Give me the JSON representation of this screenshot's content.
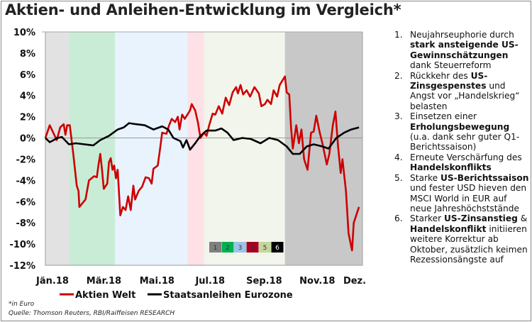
{
  "title": "Aktien- und Anleihen-Entwicklung im Vergleich*",
  "footnote": "*in Euro",
  "source": "Quelle: Thomson Reuters, RBI/Raiffeisen RESEARCH",
  "notes": [
    {
      "n": "1.",
      "parts": [
        {
          "t": "Neujahrseuphorie durch ",
          "b": false
        },
        {
          "t": "stark ansteigende US-Gewinnschätzungen",
          "b": true
        },
        {
          "t": " dank Steuerreform",
          "b": false
        }
      ]
    },
    {
      "n": "2.",
      "parts": [
        {
          "t": "Rückkehr des ",
          "b": false
        },
        {
          "t": "US-Zinsgespenstes",
          "b": true
        },
        {
          "t": " und Angst vor „Handelskrieg“ belasten",
          "b": false
        }
      ]
    },
    {
      "n": "3.",
      "parts": [
        {
          "t": "Einsetzen einer ",
          "b": false
        },
        {
          "t": "Erholungsbewegung",
          "b": true
        },
        {
          "t": " (u.a. dank sehr guter Q1-Berichtssaison)",
          "b": false
        }
      ]
    },
    {
      "n": "4.",
      "parts": [
        {
          "t": "Erneute Verschärfung des ",
          "b": false
        },
        {
          "t": "Handelskonflikts",
          "b": true
        }
      ]
    },
    {
      "n": "5.",
      "parts": [
        {
          "t": "Starke ",
          "b": false
        },
        {
          "t": "US-Berichtssaison",
          "b": true
        },
        {
          "t": " und fester USD hieven den MSCI World in EUR auf neue Jahreshöchststände",
          "b": false
        }
      ]
    },
    {
      "n": "6.",
      "parts": [
        {
          "t": "Starker ",
          "b": false
        },
        {
          "t": "US-Zinsanstieg",
          "b": true
        },
        {
          "t": " & ",
          "b": false
        },
        {
          "t": "Handelskonflikt",
          "b": true
        },
        {
          "t": " initiieren weitere Korrektur ab Oktober, zusätzlich keimen Rezessionsängste auf",
          "b": false
        }
      ]
    }
  ],
  "chart_data": {
    "type": "line",
    "title": "Aktien- und Anleihen-Entwicklung im Vergleich*",
    "ylim": [
      -12,
      10
    ],
    "yticks": [
      "10%",
      "8%",
      "6%",
      "4%",
      "2%",
      "0%",
      "-2%",
      "-4%",
      "-6%",
      "-8%",
      "-10%",
      "-12%"
    ],
    "ytick_values": [
      10,
      8,
      6,
      4,
      2,
      0,
      -2,
      -4,
      -6,
      -8,
      -10,
      -12
    ],
    "xlim": [
      "2018-01-01",
      "2018-12-31"
    ],
    "xticks": [
      {
        "label": "Jän.18",
        "date": "2018-01-01"
      },
      {
        "label": "Mär.18",
        "date": "2018-03-01"
      },
      {
        "label": "Mai.18",
        "date": "2018-05-01"
      },
      {
        "label": "Jul.18",
        "date": "2018-07-01"
      },
      {
        "label": "Sep.18",
        "date": "2018-09-01"
      },
      {
        "label": "Nov.18",
        "date": "2018-11-01"
      },
      {
        "label": "Dez.",
        "date": "2018-12-26"
      }
    ],
    "legend_position": "bottom",
    "phases": [
      {
        "label": "1",
        "start": "2018-01-01",
        "end": "2018-01-28",
        "color": "#e2e2e2",
        "key_color": "#7f7f7f"
      },
      {
        "label": "2",
        "start": "2018-01-28",
        "end": "2018-03-22",
        "color": "#c9ecd6",
        "key_color": "#00b050"
      },
      {
        "label": "3",
        "start": "2018-03-22",
        "end": "2018-06-13",
        "color": "#e9f3fd",
        "key_color": "#9dc3e6"
      },
      {
        "label": "4",
        "start": "2018-06-13",
        "end": "2018-07-02",
        "color": "#fde1e7",
        "key_color": "#a50021"
      },
      {
        "label": "5",
        "start": "2018-07-02",
        "end": "2018-10-03",
        "color": "#f2f5eb",
        "key_color": "#c4d79b"
      },
      {
        "label": "6",
        "start": "2018-10-03",
        "end": "2018-12-31",
        "color": "#c8c8c8",
        "key_color": "#000000"
      }
    ],
    "series": [
      {
        "name": "Aktien Welt",
        "color": "#cc0000",
        "points": [
          [
            "2018-01-01",
            0
          ],
          [
            "2018-01-06",
            1.2
          ],
          [
            "2018-01-10",
            0.5
          ],
          [
            "2018-01-14",
            -0.2
          ],
          [
            "2018-01-18",
            1.0
          ],
          [
            "2018-01-22",
            1.3
          ],
          [
            "2018-01-24",
            0.3
          ],
          [
            "2018-01-26",
            1.2
          ],
          [
            "2018-01-29",
            1.2
          ],
          [
            "2018-02-02",
            -1.5
          ],
          [
            "2018-02-06",
            -4.5
          ],
          [
            "2018-02-08",
            -5.0
          ],
          [
            "2018-02-09",
            -6.5
          ],
          [
            "2018-02-14",
            -6.0
          ],
          [
            "2018-02-16",
            -5.8
          ],
          [
            "2018-02-20",
            -4.0
          ],
          [
            "2018-02-26",
            -3.6
          ],
          [
            "2018-03-01",
            -3.7
          ],
          [
            "2018-03-03",
            -2.5
          ],
          [
            "2018-03-05",
            -1.5
          ],
          [
            "2018-03-07",
            -3.0
          ],
          [
            "2018-03-09",
            -4.8
          ],
          [
            "2018-03-13",
            -4.3
          ],
          [
            "2018-03-15",
            -2.3
          ],
          [
            "2018-03-17",
            -1.9
          ],
          [
            "2018-03-19",
            -3.0
          ],
          [
            "2018-03-21",
            -2.6
          ],
          [
            "2018-03-23",
            -3.8
          ],
          [
            "2018-03-25",
            -3.0
          ],
          [
            "2018-03-28",
            -7.3
          ],
          [
            "2018-03-31",
            -6.5
          ],
          [
            "2018-04-03",
            -6.8
          ],
          [
            "2018-04-06",
            -5.5
          ],
          [
            "2018-04-09",
            -6.8
          ],
          [
            "2018-04-12",
            -4.5
          ],
          [
            "2018-04-14",
            -5.8
          ],
          [
            "2018-04-18",
            -5.0
          ],
          [
            "2018-04-22",
            -4.6
          ],
          [
            "2018-04-26",
            -3.7
          ],
          [
            "2018-04-30",
            -3.8
          ],
          [
            "2018-05-03",
            -4.3
          ],
          [
            "2018-05-05",
            -2.9
          ],
          [
            "2018-05-10",
            -2.6
          ],
          [
            "2018-05-13",
            -0.8
          ],
          [
            "2018-05-15",
            0.5
          ],
          [
            "2018-05-20",
            0.4
          ],
          [
            "2018-05-23",
            1.2
          ],
          [
            "2018-05-26",
            1.8
          ],
          [
            "2018-05-30",
            1.5
          ],
          [
            "2018-06-02",
            2.0
          ],
          [
            "2018-06-04",
            0.8
          ],
          [
            "2018-06-07",
            2.2
          ],
          [
            "2018-06-10",
            1.8
          ],
          [
            "2018-06-13",
            2.2
          ],
          [
            "2018-06-16",
            2.6
          ],
          [
            "2018-06-18",
            3.2
          ],
          [
            "2018-06-22",
            2.6
          ],
          [
            "2018-06-25",
            1.5
          ],
          [
            "2018-06-28",
            0.0
          ],
          [
            "2018-07-02",
            0.5
          ],
          [
            "2018-07-05",
            0.2
          ],
          [
            "2018-07-08",
            1.2
          ],
          [
            "2018-07-12",
            2.3
          ],
          [
            "2018-07-15",
            2.2
          ],
          [
            "2018-07-19",
            3.0
          ],
          [
            "2018-07-23",
            2.3
          ],
          [
            "2018-07-27",
            3.8
          ],
          [
            "2018-07-31",
            3.1
          ],
          [
            "2018-08-04",
            4.3
          ],
          [
            "2018-08-08",
            4.8
          ],
          [
            "2018-08-10",
            4.2
          ],
          [
            "2018-08-13",
            5.0
          ],
          [
            "2018-08-16",
            4.1
          ],
          [
            "2018-08-20",
            4.5
          ],
          [
            "2018-08-24",
            3.9
          ],
          [
            "2018-08-29",
            4.8
          ],
          [
            "2018-09-03",
            4.2
          ],
          [
            "2018-09-06",
            3.0
          ],
          [
            "2018-09-10",
            3.2
          ],
          [
            "2018-09-13",
            3.6
          ],
          [
            "2018-09-17",
            3.2
          ],
          [
            "2018-09-20",
            4.5
          ],
          [
            "2018-09-24",
            3.9
          ],
          [
            "2018-09-27",
            5.0
          ],
          [
            "2018-10-03",
            5.8
          ],
          [
            "2018-10-05",
            4.3
          ],
          [
            "2018-10-08",
            4.1
          ],
          [
            "2018-10-10",
            1.0
          ],
          [
            "2018-10-12",
            -1.0
          ],
          [
            "2018-10-16",
            1.2
          ],
          [
            "2018-10-19",
            -0.5
          ],
          [
            "2018-10-22",
            0.8
          ],
          [
            "2018-10-25",
            -2.0
          ],
          [
            "2018-10-29",
            -3.0
          ],
          [
            "2018-11-02",
            0.5
          ],
          [
            "2018-11-05",
            0.6
          ],
          [
            "2018-11-08",
            2.1
          ],
          [
            "2018-11-12",
            0.5
          ],
          [
            "2018-11-15",
            -0.5
          ],
          [
            "2018-11-20",
            -2.5
          ],
          [
            "2018-11-23",
            -1.5
          ],
          [
            "2018-11-27",
            1.2
          ],
          [
            "2018-11-30",
            2.5
          ],
          [
            "2018-12-03",
            -0.8
          ],
          [
            "2018-12-06",
            -3.3
          ],
          [
            "2018-12-08",
            -2.0
          ],
          [
            "2018-12-12",
            -5.0
          ],
          [
            "2018-12-15",
            -9.0
          ],
          [
            "2018-12-19",
            -10.6
          ],
          [
            "2018-12-21",
            -8.0
          ],
          [
            "2018-12-27",
            -6.5
          ]
        ]
      },
      {
        "name": "Staatsanleihen Eurozone",
        "color": "#000000",
        "points": [
          [
            "2018-01-01",
            0
          ],
          [
            "2018-01-06",
            -0.4
          ],
          [
            "2018-01-15",
            0.0
          ],
          [
            "2018-01-20",
            0.1
          ],
          [
            "2018-01-28",
            -0.6
          ],
          [
            "2018-02-05",
            -0.5
          ],
          [
            "2018-02-15",
            -0.6
          ],
          [
            "2018-02-25",
            -0.7
          ],
          [
            "2018-03-05",
            -0.2
          ],
          [
            "2018-03-15",
            0.2
          ],
          [
            "2018-03-25",
            0.8
          ],
          [
            "2018-04-01",
            1.0
          ],
          [
            "2018-04-07",
            1.4
          ],
          [
            "2018-04-15",
            1.3
          ],
          [
            "2018-04-25",
            1.2
          ],
          [
            "2018-05-05",
            0.8
          ],
          [
            "2018-05-15",
            1.1
          ],
          [
            "2018-05-22",
            0.8
          ],
          [
            "2018-05-28",
            0.0
          ],
          [
            "2018-06-05",
            -0.3
          ],
          [
            "2018-06-08",
            -0.9
          ],
          [
            "2018-06-12",
            -0.2
          ],
          [
            "2018-06-16",
            -1.1
          ],
          [
            "2018-06-22",
            -0.5
          ],
          [
            "2018-06-28",
            0.2
          ],
          [
            "2018-07-05",
            0.7
          ],
          [
            "2018-07-15",
            0.7
          ],
          [
            "2018-07-22",
            0.9
          ],
          [
            "2018-07-29",
            0.5
          ],
          [
            "2018-08-05",
            -0.2
          ],
          [
            "2018-08-15",
            0.0
          ],
          [
            "2018-08-25",
            -0.1
          ],
          [
            "2018-09-05",
            -0.5
          ],
          [
            "2018-09-15",
            0.0
          ],
          [
            "2018-09-25",
            -0.2
          ],
          [
            "2018-10-05",
            -0.8
          ],
          [
            "2018-10-12",
            -1.5
          ],
          [
            "2018-10-20",
            -1.5
          ],
          [
            "2018-10-28",
            -0.8
          ],
          [
            "2018-11-05",
            -0.6
          ],
          [
            "2018-11-15",
            -0.8
          ],
          [
            "2018-11-22",
            -1.0
          ],
          [
            "2018-12-01",
            0.0
          ],
          [
            "2018-12-10",
            0.5
          ],
          [
            "2018-12-18",
            0.8
          ],
          [
            "2018-12-27",
            1.0
          ]
        ]
      }
    ]
  }
}
